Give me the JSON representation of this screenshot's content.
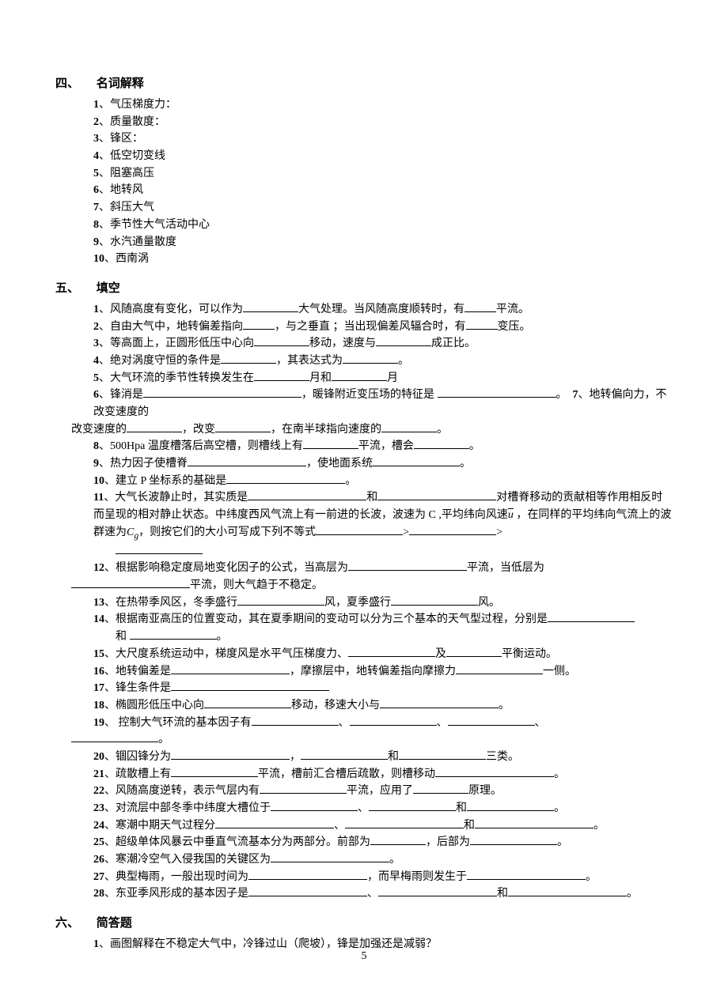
{
  "section4": {
    "number": "四、",
    "title": "名词解释",
    "items": [
      {
        "idx": "1",
        "text": "气压梯度力："
      },
      {
        "idx": "2",
        "text": "质量散度："
      },
      {
        "idx": "3",
        "text": "锋区："
      },
      {
        "idx": "4",
        "text": "低空切变线"
      },
      {
        "idx": "5",
        "text": "阻塞高压"
      },
      {
        "idx": "6",
        "text": "地转风"
      },
      {
        "idx": "7",
        "text": "斜压大气"
      },
      {
        "idx": "8",
        "text": "季节性大气活动中心"
      },
      {
        "idx": "9",
        "text": "水汽通量散度"
      },
      {
        "idx": "10",
        "text": "西南涡"
      }
    ]
  },
  "section5": {
    "number": "五、",
    "title": "填空",
    "q1": {
      "idx": "1",
      "p1": "风随高度有变化，可以作为",
      "p2": "大气处理。当风随高度顺转时，有",
      "p3": "平流。"
    },
    "q2": {
      "idx": "2",
      "p1": "自由大气中，地转偏差指向",
      "p2": "，与之垂直 ；当出现偏差风辐合时，有",
      "p3": "变压。"
    },
    "q3": {
      "idx": "3",
      "p1": "等高面上，正圆形低压中心向",
      "p2": "移动，速度与",
      "p3": "成正比。"
    },
    "q4": {
      "idx": "4",
      "p1": "绝对涡度守恒的条件是",
      "p2": "，其表达式为",
      "p3": "。"
    },
    "q5": {
      "idx": "5",
      "p1": "大气环流的季节性转换发生在",
      "p2": "月和",
      "p3": "月"
    },
    "q6": {
      "idx": "6",
      "p1": "锋消是",
      "p2": "，暖锋附近变压场的特征是 ",
      "p3": "。"
    },
    "q7": {
      "idx": "7",
      "p1": "地转偏向力，不改变速度的",
      "p2": "，改变",
      "p3": "，在南半球指向速度的",
      "p4": "。"
    },
    "q8": {
      "idx": "8",
      "p1": "500Hpa 温度槽落后高空槽，则槽线上有",
      "p2": "平流，槽会",
      "p3": "。"
    },
    "q9": {
      "idx": "9",
      "p1": "热力因子使槽脊",
      "p2": "，使地面系统",
      "p3": "。"
    },
    "q10": {
      "idx": "10",
      "p1": "建立 P 坐标系的基础是",
      "p2": "。"
    },
    "q11": {
      "idx": "11",
      "p1": "大气长波静止时，其实质是",
      "p2": "和",
      "p3": "对槽脊移动的贡献相等作用相反时而呈现的相对静止状态。中纬度西风气流上有一前进的长波，波速为 C ,平均纬向风速",
      "p4": " ，在同样的平均纬向气流上的波群速为",
      "p5": "，则按它们的大小可写成下列不等式",
      "p6": ">",
      "p7": ">"
    },
    "q12": {
      "idx": "12",
      "p1": "根据影响稳定度局地变化因子的公式，当高层为",
      "p2": "平流，当低层为",
      "p3": "平流，则大气趋于不稳定。"
    },
    "q13": {
      "idx": "13",
      "p1": "在热带季风区，冬季盛行",
      "p2": "风，夏季盛行",
      "p3": "风。"
    },
    "q14": {
      "idx": "14",
      "p1": "根据南亚高压的位置变动，其在夏季期间的变动可以分为三个基本的天气型过程，分别是",
      "p2": "和 ",
      "p3": "。"
    },
    "q15": {
      "idx": "15",
      "p1": "大尺度系统运动中，梯度风是水平气压梯度力、",
      "p2": "及",
      "p3": "平衡运动。"
    },
    "q16": {
      "idx": "16",
      "p1": "地转偏差是",
      "p2": "，摩擦层中，地转偏差指向摩擦力",
      "p3": "一侧。"
    },
    "q17": {
      "idx": "17",
      "p1": "锋生条件是"
    },
    "q18": {
      "idx": "18",
      "p1": "椭圆形低压中心向",
      "p2": "移动，移速大小与",
      "p3": "。"
    },
    "q19": {
      "idx": "19",
      "p1": " 控制大气环流的基本因子有",
      "p2": "、",
      "p3": "、",
      "p4": "、",
      "p5": "。"
    },
    "q20": {
      "idx": "20",
      "p1": "锢囚锋分为",
      "p2": "，",
      "p3": "和",
      "p4": "三类。"
    },
    "q21": {
      "idx": "21",
      "p1": "疏散槽上有",
      "p2": "平流，槽前汇合槽后疏散，则槽移动",
      "p3": "。"
    },
    "q22": {
      "idx": "22",
      "p1": "风随高度逆转，表示气层内有",
      "p2": "平流，应用了",
      "p3": "原理。"
    },
    "q23": {
      "idx": "23",
      "p1": "对流层中部冬季中纬度大槽位于",
      "p2": "、",
      "p3": "和",
      "p4": "。"
    },
    "q24": {
      "idx": "24",
      "p1": "寒潮中期天气过程分",
      "p2": "、",
      "p3": "和",
      "p4": "。"
    },
    "q25": {
      "idx": "25",
      "p1": "超级单体风暴云中垂直气流基本分为两部分。前部为",
      "p2": "，后部为",
      "p3": "。"
    },
    "q26": {
      "idx": "26",
      "p1": "寒潮冷空气入侵我国的关键区为",
      "p2": "。"
    },
    "q27": {
      "idx": "27",
      "p1": "典型梅雨，一般出现时间为",
      "p2": "，而早梅雨则发生于",
      "p3": "。"
    },
    "q28": {
      "idx": "28",
      "p1": "东亚季风形成的基本因子是",
      "p2": "、",
      "p3": "和",
      "p4": "。"
    }
  },
  "section6": {
    "number": "六、",
    "title": "简答题",
    "items": [
      {
        "idx": "1",
        "text": "画图解释在不稳定大气中，冷锋过山（爬坡），锋是加强还是减弱？"
      }
    ]
  },
  "page_number": "5",
  "math_u_bar": "u",
  "math_cg": "C",
  "math_cg_sub": "g"
}
